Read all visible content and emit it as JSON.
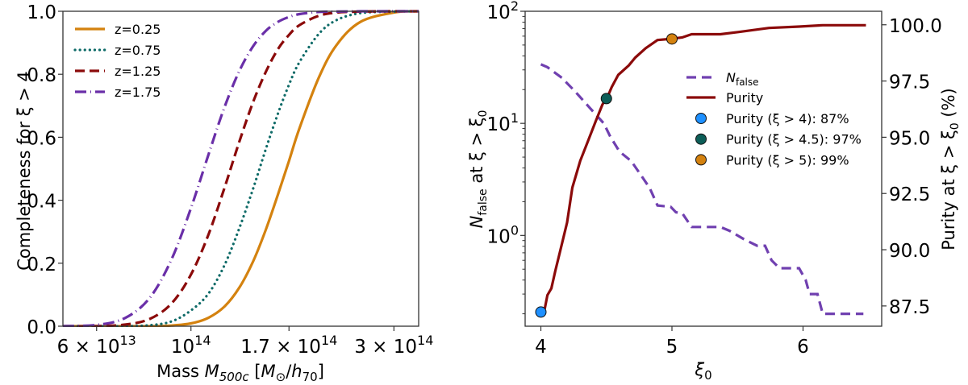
{
  "chart_data": [
    {
      "type": "line",
      "xlabel": {
        "prefix": "Mass ",
        "var": "M",
        "sub": "500c",
        "unit_open": " [",
        "unit_var": "M",
        "unit_sub": "⊙",
        "unit_mid": "/",
        "unit_var2": "h",
        "unit_sub2": "70",
        "unit_close": "]"
      },
      "ylabel": "Completeness for ξ > 4",
      "x_scale": "log",
      "xlim": [
        50000000000000.0,
        343000000000000.0
      ],
      "ylim": [
        0,
        1
      ],
      "x_ticks": [
        {
          "value": 60000000000000.0,
          "mantissa": "6 × 10",
          "exp": "13"
        },
        {
          "value": 100000000000000.0,
          "mantissa": "10",
          "exp": "14"
        },
        {
          "value": 170000000000000.0,
          "mantissa": "1.7 × 10",
          "exp": "14"
        },
        {
          "value": 300000000000000.0,
          "mantissa": "3 × 10",
          "exp": "14"
        }
      ],
      "y_ticks": [
        {
          "value": 0,
          "label": "0.0"
        },
        {
          "value": 0.2,
          "label": "0.2"
        },
        {
          "value": 0.4,
          "label": "0.4"
        },
        {
          "value": 0.6,
          "label": "0.6"
        },
        {
          "value": 0.8,
          "label": "0.8"
        },
        {
          "value": 1.0,
          "label": "1.0"
        }
      ],
      "grid": false,
      "legend_position": "top-left",
      "x": [
        50000000000000.0,
        60000000000000.0,
        70000000000000.0,
        80000000000000.0,
        90000000000000.0,
        100000000000000.0,
        110000000000000.0,
        120000000000000.0,
        130000000000000.0,
        140000000000000.0,
        150000000000000.0,
        160000000000000.0,
        170000000000000.0,
        180000000000000.0,
        200000000000000.0,
        220000000000000.0,
        250000000000000.0,
        300000000000000.0,
        343000000000000.0
      ],
      "series": [
        {
          "name": "z=0.25",
          "color": "#d4820f",
          "style": "solid",
          "values": [
            0,
            0,
            0,
            0,
            0.002,
            0.009,
            0.027,
            0.063,
            0.123,
            0.206,
            0.307,
            0.417,
            0.525,
            0.629,
            0.791,
            0.893,
            0.966,
            0.996,
            1.0
          ]
        },
        {
          "name": "z=0.75",
          "color": "#0e6b68",
          "style": "dotted",
          "values": [
            0,
            0,
            0,
            0.003,
            0.015,
            0.05,
            0.104,
            0.195,
            0.312,
            0.437,
            0.563,
            0.674,
            0.767,
            0.839,
            0.929,
            0.972,
            0.994,
            0.999,
            1.0
          ]
        },
        {
          "name": "z=1.25",
          "color": "#8b0a0a",
          "style": "dashed",
          "values": [
            0,
            0.0005,
            0.005,
            0.023,
            0.072,
            0.164,
            0.292,
            0.441,
            0.587,
            0.712,
            0.808,
            0.879,
            0.925,
            0.956,
            0.986,
            0.996,
            0.999,
            1.0,
            1.0
          ]
        },
        {
          "name": "z=1.75",
          "color": "#6a2fa8",
          "style": "dashdot",
          "values": [
            0.0003,
            0.004,
            0.026,
            0.09,
            0.212,
            0.375,
            0.546,
            0.697,
            0.811,
            0.889,
            0.938,
            0.966,
            0.982,
            0.991,
            0.998,
            0.999,
            1.0,
            1.0,
            1.0
          ]
        }
      ]
    },
    {
      "type": "line",
      "xlabel": {
        "var": "ξ",
        "sub": "0"
      },
      "ylabel_left": {
        "var": "N",
        "sub": "false",
        "rest": " at ξ > ξ",
        "sub2": "0"
      },
      "ylabel_right": {
        "text": "Purity at ξ > ξ",
        "sub": "0",
        "rest": " (%)"
      },
      "xlim": [
        3.88,
        6.6
      ],
      "ylim_left": [
        0.155,
        100
      ],
      "y_left_scale": "log",
      "ylim_right": [
        86.6,
        100.6
      ],
      "x_ticks": [
        {
          "value": 4,
          "label": "4"
        },
        {
          "value": 5,
          "label": "5"
        },
        {
          "value": 6,
          "label": "6"
        }
      ],
      "y_left_ticks": [
        {
          "value": 1,
          "base": "10",
          "exp": "0"
        },
        {
          "value": 10,
          "base": "10",
          "exp": "1"
        },
        {
          "value": 100,
          "base": "10",
          "exp": "2"
        }
      ],
      "y_right_ticks": [
        {
          "value": 87.5,
          "label": "87.5"
        },
        {
          "value": 90.0,
          "label": "90.0"
        },
        {
          "value": 92.5,
          "label": "92.5"
        },
        {
          "value": 95.0,
          "label": "95.0"
        },
        {
          "value": 97.5,
          "label": "97.5"
        },
        {
          "value": 100.0,
          "label": "100.0"
        }
      ],
      "grid": false,
      "legend_position": "center-right",
      "n_false": {
        "name": {
          "var": "N",
          "sub": "false"
        },
        "color": "#7040b0",
        "style": "dashed",
        "axis": "left",
        "x": [
          4.0,
          4.05,
          4.16,
          4.26,
          4.37,
          4.48,
          4.53,
          4.6,
          4.69,
          4.76,
          4.83,
          4.89,
          4.99,
          5.03,
          5.08,
          5.15,
          5.37,
          5.44,
          5.56,
          5.65,
          5.71,
          5.76,
          5.82,
          5.97,
          6.02,
          6.05,
          6.11,
          6.15,
          6.46
        ],
        "y": [
          33.6,
          31.7,
          25.5,
          19.3,
          13.9,
          10,
          7.6,
          5.6,
          4.6,
          3.5,
          2.65,
          1.85,
          1.8,
          1.61,
          1.57,
          1.19,
          1.19,
          1.1,
          0.91,
          0.81,
          0.81,
          0.6,
          0.51,
          0.51,
          0.4,
          0.3,
          0.3,
          0.2,
          0.2
        ]
      },
      "purity": {
        "name": "Purity",
        "color": "#8b0a0a",
        "style": "solid",
        "axis": "right",
        "x": [
          4.0,
          4.03,
          4.05,
          4.08,
          4.11,
          4.15,
          4.2,
          4.24,
          4.3,
          4.36,
          4.42,
          4.47,
          4.51,
          4.54,
          4.59,
          4.67,
          4.72,
          4.8,
          4.89,
          5.0,
          5.08,
          5.15,
          5.37,
          5.51,
          5.74,
          5.97,
          6.15,
          6.48
        ],
        "y": [
          87.23,
          87.39,
          87.98,
          88.28,
          89.06,
          90.01,
          91.21,
          92.76,
          93.95,
          94.84,
          95.74,
          96.46,
          96.81,
          97.23,
          97.77,
          98.19,
          98.54,
          98.96,
          99.32,
          99.38,
          99.44,
          99.58,
          99.58,
          99.68,
          99.86,
          99.92,
          99.98,
          99.98
        ]
      },
      "markers": [
        {
          "label": "Purity (ξ > 4): 87%",
          "x": 4.0,
          "y": 87.23,
          "color": "#1e90ff"
        },
        {
          "label": "Purity (ξ > 4.5): 97%",
          "x": 4.5,
          "y": 96.72,
          "color": "#0d5e58"
        },
        {
          "label": "Purity (ξ > 5): 99%",
          "x": 5.0,
          "y": 99.37,
          "color": "#d4820f"
        }
      ]
    }
  ]
}
